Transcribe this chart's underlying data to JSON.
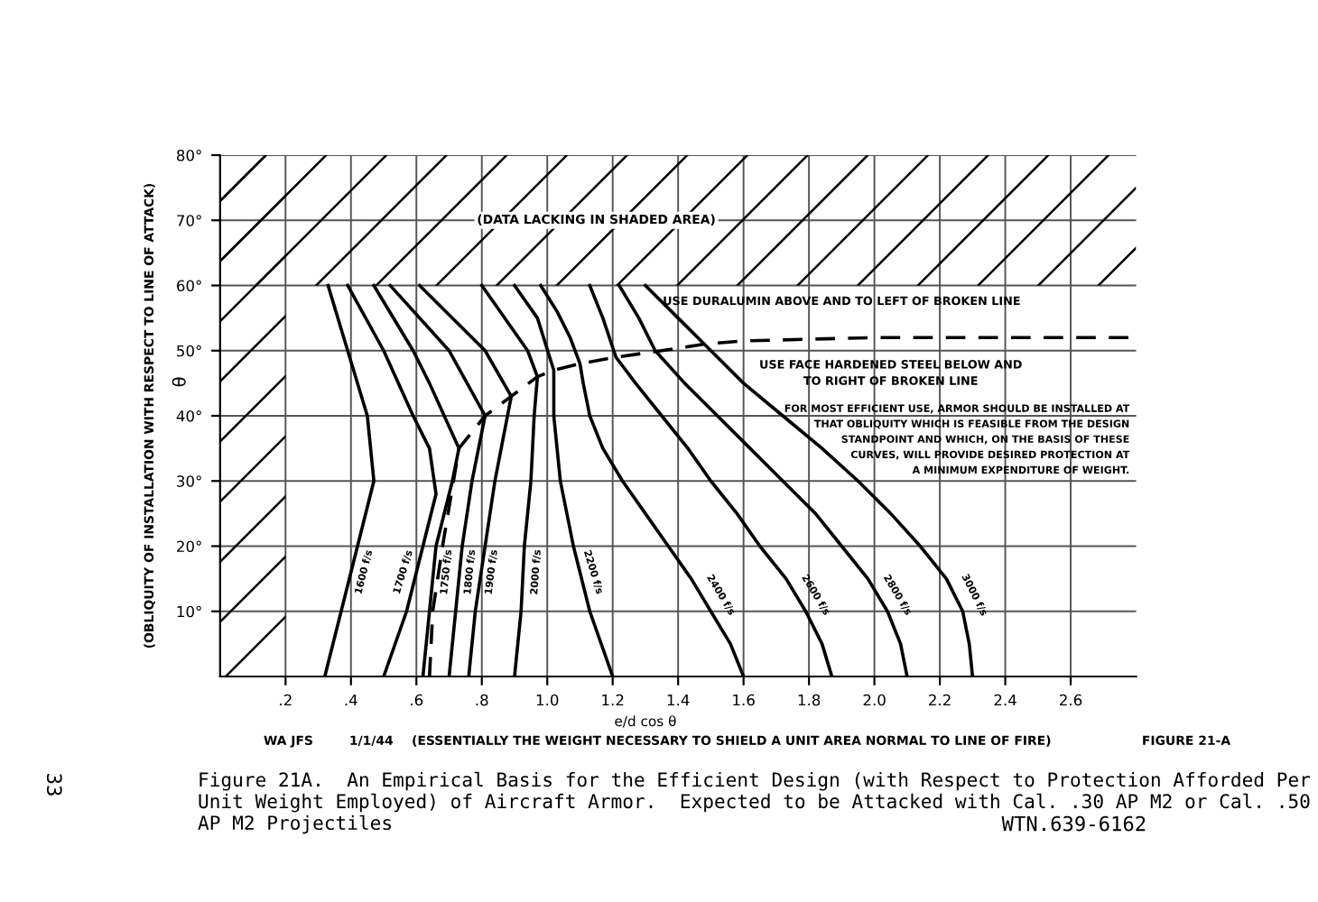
{
  "chart_data": {
    "type": "line",
    "title": "Figure 21A.  An Empirical Basis for the Efficient Design (with Respect to Protection Afforded Per Unit Weight Employed) of Aircraft Armor.  Expected to be Attacked with Cal. .30 AP M2 or Cal. .50 AP M2 Projectiles",
    "xlabel": "e/d cos θ",
    "ylabel": "(OBLIQUITY OF INSTALLATION WITH RESPECT TO LINE OF ATTACK)",
    "y2label": "θ",
    "series": [
      {
        "name": "1600 f/s",
        "color": "#000000",
        "x": [
          0.32,
          0.37,
          0.42,
          0.47,
          0.45,
          0.39,
          0.33
        ],
        "values": [
          0,
          10,
          20,
          30,
          40,
          50,
          60
        ]
      },
      {
        "name": "1700 f/s",
        "color": "#000000",
        "x": [
          0.5,
          0.57,
          0.62,
          0.66,
          0.64,
          0.59,
          0.5,
          0.39
        ],
        "values": [
          0,
          10,
          20,
          28,
          35,
          40,
          50,
          60
        ]
      },
      {
        "name": "1750 f/s",
        "color": "#000000",
        "x": [
          0.62,
          0.64,
          0.66,
          0.71,
          0.73,
          0.64,
          0.59,
          0.47
        ],
        "values": [
          0,
          10,
          20,
          30,
          35,
          45,
          50,
          60
        ]
      },
      {
        "name": "1800 f/s",
        "color": "#000000",
        "x": [
          0.7,
          0.72,
          0.74,
          0.77,
          0.81,
          0.7,
          0.52
        ],
        "values": [
          0,
          10,
          20,
          30,
          40,
          50,
          60
        ]
      },
      {
        "name": "1900 f/s",
        "color": "#000000",
        "x": [
          0.76,
          0.78,
          0.81,
          0.84,
          0.89,
          0.81,
          0.61
        ],
        "values": [
          0,
          10,
          20,
          30,
          43,
          50,
          60
        ]
      },
      {
        "name": "2000 f/s",
        "color": "#000000",
        "x": [
          0.9,
          0.92,
          0.93,
          0.95,
          0.96,
          0.97,
          0.94,
          0.8
        ],
        "values": [
          0,
          10,
          20,
          30,
          40,
          46,
          50,
          60
        ]
      },
      {
        "name": "2200 f/s",
        "color": "#000000",
        "x": [
          1.2,
          1.13,
          1.08,
          1.04,
          1.02,
          1.02,
          0.97,
          0.9
        ],
        "values": [
          0,
          10,
          20,
          30,
          40,
          47,
          55,
          60
        ]
      },
      {
        "name": "2400 f/s",
        "color": "#000000",
        "x": [
          1.6,
          1.56,
          1.5,
          1.44,
          1.37,
          1.3,
          1.23,
          1.17,
          1.13,
          1.11,
          1.1,
          1.07,
          1.03,
          0.98
        ],
        "values": [
          0,
          5,
          10,
          15,
          20,
          25,
          30,
          35,
          40,
          45,
          48,
          52,
          56,
          60
        ]
      },
      {
        "name": "2600 f/s",
        "color": "#000000",
        "x": [
          1.87,
          1.84,
          1.79,
          1.73,
          1.65,
          1.58,
          1.5,
          1.43,
          1.35,
          1.27,
          1.21,
          1.17,
          1.13
        ],
        "values": [
          0,
          5,
          10,
          15,
          20,
          25,
          30,
          35,
          40,
          45,
          49,
          55,
          60
        ]
      },
      {
        "name": "2800 f/s",
        "color": "#000000",
        "x": [
          2.1,
          2.08,
          2.04,
          1.98,
          1.9,
          1.82,
          1.72,
          1.62,
          1.52,
          1.42,
          1.33,
          1.28,
          1.22
        ],
        "values": [
          0,
          5,
          10,
          15,
          20,
          25,
          30,
          35,
          40,
          45,
          50,
          55,
          60
        ]
      },
      {
        "name": "3000 f/s",
        "color": "#000000",
        "x": [
          2.3,
          2.29,
          2.27,
          2.22,
          2.14,
          2.05,
          1.95,
          1.84,
          1.72,
          1.6,
          1.48,
          1.4,
          1.3
        ],
        "values": [
          0,
          5,
          10,
          15,
          20,
          25,
          30,
          35,
          40,
          45,
          51,
          55,
          60
        ]
      },
      {
        "color": "#000000",
        "line_style": "dashed",
        "x": [
          0.64,
          0.65,
          0.68,
          0.73,
          0.81,
          0.89,
          0.97,
          1.02,
          1.1,
          1.21,
          1.35,
          1.48,
          1.6,
          2.0,
          2.8
        ],
        "values": [
          0,
          10,
          20,
          35,
          40,
          43,
          46,
          47,
          48,
          49,
          50,
          51,
          51.5,
          52,
          52
        ]
      }
    ],
    "xlim": [
      0,
      2.8
    ],
    "xticks": [
      {
        "value": 0.2,
        "label": ".2"
      },
      {
        "value": 0.4,
        "label": ".4"
      },
      {
        "value": 0.6,
        "label": ".6"
      },
      {
        "value": 0.8,
        "label": ".8"
      },
      {
        "value": 1.0,
        "label": "1.0"
      },
      {
        "value": 1.2,
        "label": "1.2"
      },
      {
        "value": 1.4,
        "label": "1.4"
      },
      {
        "value": 1.6,
        "label": "1.6"
      },
      {
        "value": 1.8,
        "label": "1.8"
      },
      {
        "value": 2.0,
        "label": "2.0"
      },
      {
        "value": 2.2,
        "label": "2.2"
      },
      {
        "value": 2.4,
        "label": "2.4"
      },
      {
        "value": 2.6,
        "label": "2.6"
      }
    ],
    "ylim": [
      0,
      80
    ],
    "yticks": [
      {
        "value": 10,
        "label": "10°"
      },
      {
        "value": 20,
        "label": "20°"
      },
      {
        "value": 30,
        "label": "30°"
      },
      {
        "value": 40,
        "label": "40°"
      },
      {
        "value": 50,
        "label": "50°"
      },
      {
        "value": 60,
        "label": "60°"
      },
      {
        "value": 70,
        "label": "70°"
      },
      {
        "value": 80,
        "label": "80°"
      }
    ],
    "grid": true,
    "bands": [
      {
        "axis": "y",
        "from": 60,
        "to": 80,
        "label": "(DATA LACKING IN SHADED AREA)",
        "color": "#000000"
      },
      {
        "axis": "x",
        "from": 0,
        "to": 0.2,
        "color": "#000000"
      }
    ],
    "annotations": [
      "USE DURALUMIN ABOVE AND TO LEFT OF BROKEN LINE",
      "USE FACE HARDENED STEEL BELOW AND\nTO RIGHT OF BROKEN LINE",
      "FOR MOST EFFICIENT USE, ARMOR SHOULD BE INSTALLED AT\nTHAT OBLIQUITY WHICH IS FEASIBLE FROM THE DESIGN\nSTANDPOINT AND WHICH, ON THE BASIS OF THESE\nCURVES, WILL PROVIDE DESIRED PROTECTION AT\nA MINIMUM EXPENDITURE OF WEIGHT.",
      "(ESSENTIALLY THE WEIGHT NECESSARY TO SHIELD A UNIT AREA NORMAL TO LINE OF FIRE)",
      "WA JFS",
      "1/1/44",
      "FIGURE 21-A",
      "WTN.639-6162",
      "33"
    ]
  }
}
